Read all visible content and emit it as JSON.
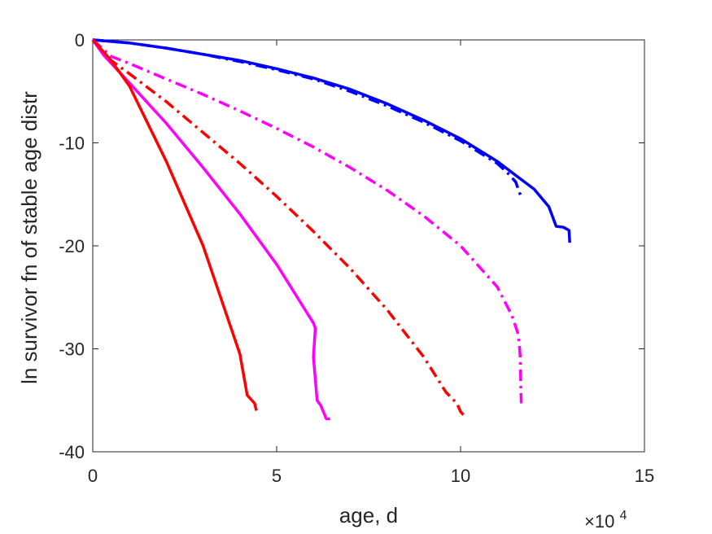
{
  "chart_data": {
    "type": "line",
    "title": "",
    "xlabel": "age, d",
    "ylabel": "ln survivor fn of stable age distr",
    "x_exponent_label": "×10",
    "x_exponent_power": "4",
    "xlim": [
      0,
      15
    ],
    "ylim": [
      -40,
      0
    ],
    "x_ticks": [
      0,
      5,
      10,
      15
    ],
    "y_ticks": [
      0,
      -10,
      -20,
      -30,
      -40
    ],
    "grid": false,
    "legend": "none",
    "series": [
      {
        "color": "#0000ff",
        "style": "solid",
        "points": [
          [
            0,
            0
          ],
          [
            1,
            -0.3
          ],
          [
            2,
            -0.8
          ],
          [
            3,
            -1.4
          ],
          [
            4,
            -2.0
          ],
          [
            5,
            -2.8
          ],
          [
            6,
            -3.7
          ],
          [
            7,
            -4.8
          ],
          [
            8,
            -6.2
          ],
          [
            9,
            -7.8
          ],
          [
            10,
            -9.6
          ],
          [
            11,
            -11.8
          ],
          [
            12,
            -14.5
          ],
          [
            12.4,
            -16.2
          ],
          [
            12.6,
            -18.1
          ],
          [
            12.8,
            -18.2
          ],
          [
            12.95,
            -18.5
          ],
          [
            12.97,
            -19.7
          ]
        ]
      },
      {
        "color": "#0000ff",
        "style": "dashdot",
        "points": [
          [
            0,
            0
          ],
          [
            1,
            -0.3
          ],
          [
            2,
            -0.8
          ],
          [
            3,
            -1.4
          ],
          [
            4,
            -2.1
          ],
          [
            5,
            -2.9
          ],
          [
            6,
            -3.8
          ],
          [
            7,
            -5.0
          ],
          [
            8,
            -6.4
          ],
          [
            9,
            -8.0
          ],
          [
            10,
            -9.8
          ],
          [
            11,
            -12.0
          ],
          [
            11.3,
            -13.0
          ],
          [
            11.5,
            -13.8
          ],
          [
            11.65,
            -15.3
          ]
        ]
      },
      {
        "color": "#ff00ff",
        "style": "dashdot",
        "points": [
          [
            0,
            0
          ],
          [
            0.5,
            -1.6
          ],
          [
            1,
            -2.3
          ],
          [
            2,
            -3.8
          ],
          [
            3,
            -5.3
          ],
          [
            4,
            -6.9
          ],
          [
            5,
            -8.6
          ],
          [
            6,
            -10.4
          ],
          [
            7,
            -12.4
          ],
          [
            8,
            -14.6
          ],
          [
            9,
            -17.1
          ],
          [
            10,
            -20.0
          ],
          [
            11,
            -24.0
          ],
          [
            11.4,
            -26.8
          ],
          [
            11.55,
            -28.4
          ],
          [
            11.6,
            -29.6
          ],
          [
            11.62,
            -30.7
          ],
          [
            11.65,
            -35.3
          ]
        ]
      },
      {
        "color": "#ff0000",
        "style": "dashdot",
        "points": [
          [
            0,
            0
          ],
          [
            0.5,
            -2.0
          ],
          [
            1,
            -3.3
          ],
          [
            2,
            -6.0
          ],
          [
            3,
            -9.0
          ],
          [
            4,
            -12.0
          ],
          [
            5,
            -15.2
          ],
          [
            6,
            -18.6
          ],
          [
            7,
            -22.2
          ],
          [
            8,
            -26.2
          ],
          [
            9,
            -30.8
          ],
          [
            9.6,
            -34.2
          ],
          [
            9.9,
            -35.3
          ],
          [
            10,
            -36.1
          ],
          [
            10.15,
            -36.7
          ]
        ]
      },
      {
        "color": "#ff00ff",
        "style": "solid",
        "points": [
          [
            0,
            0
          ],
          [
            0.3,
            -1.5
          ],
          [
            1,
            -4.2
          ],
          [
            2,
            -8.1
          ],
          [
            3,
            -12.4
          ],
          [
            4,
            -16.9
          ],
          [
            5,
            -21.8
          ],
          [
            6,
            -27.5
          ],
          [
            6.05,
            -28.0
          ],
          [
            6,
            -30.8
          ],
          [
            6.1,
            -35.0
          ],
          [
            6.2,
            -35.5
          ],
          [
            6.35,
            -36.8
          ],
          [
            6.45,
            -36.8
          ]
        ]
      },
      {
        "color": "#ff0000",
        "style": "solid",
        "points": [
          [
            0,
            0
          ],
          [
            0.5,
            -2.0
          ],
          [
            1,
            -4.5
          ],
          [
            2,
            -11.8
          ],
          [
            3,
            -20.0
          ],
          [
            4,
            -30.5
          ],
          [
            4.2,
            -34.5
          ],
          [
            4.4,
            -35.3
          ],
          [
            4.45,
            -36.0
          ]
        ]
      }
    ]
  }
}
